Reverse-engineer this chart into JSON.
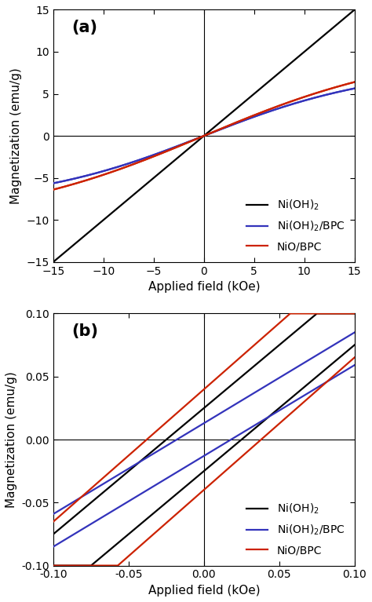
{
  "panel_a": {
    "title": "(a)",
    "xlabel": "Applied field (kOe)",
    "ylabel": "Magnetization (emu/g)",
    "xlim": [
      -15,
      15
    ],
    "ylim": [
      -15,
      15
    ],
    "xticks": [
      -15,
      -10,
      -5,
      0,
      5,
      10,
      15
    ],
    "yticks": [
      -15,
      -10,
      -5,
      0,
      5,
      10,
      15
    ]
  },
  "panel_b": {
    "title": "(b)",
    "xlabel": "Applied field (kOe)",
    "ylabel": "Magnetization (emu/g)",
    "xlim": [
      -0.1,
      0.1
    ],
    "ylim": [
      -0.1,
      0.1
    ],
    "xticks": [
      -0.1,
      -0.05,
      0.0,
      0.05,
      0.1
    ],
    "yticks": [
      -0.1,
      -0.05,
      0.0,
      0.05,
      0.1
    ]
  },
  "legend": {
    "ni_oh2_label": "Ni(OH)$_2$",
    "ni_oh2_bpc_label": "Ni(OH)$_2$/BPC",
    "nio_bpc_label": "NiO/BPC"
  },
  "colors": {
    "ni_oh2": "#000000",
    "ni_oh2_bpc": "#3333bb",
    "nio_bpc": "#cc2200"
  },
  "background": "#ffffff",
  "curve_params": {
    "nioh2_slope_a": 1.0,
    "blue_Ms_a": 10.5,
    "blue_a_a": 7.5,
    "blue_Hc_a": 0.008,
    "red_Ms_a": 13.5,
    "red_a_a": 9.0,
    "red_Hc_a": 0.01,
    "nioh2_slope_b": 1.0,
    "nioh2_Hc_b": 0.025,
    "blue_slope_b": 0.72,
    "blue_Hc_b": 0.018,
    "red_slope_b": 1.05,
    "red_Hc_b": 0.038
  }
}
